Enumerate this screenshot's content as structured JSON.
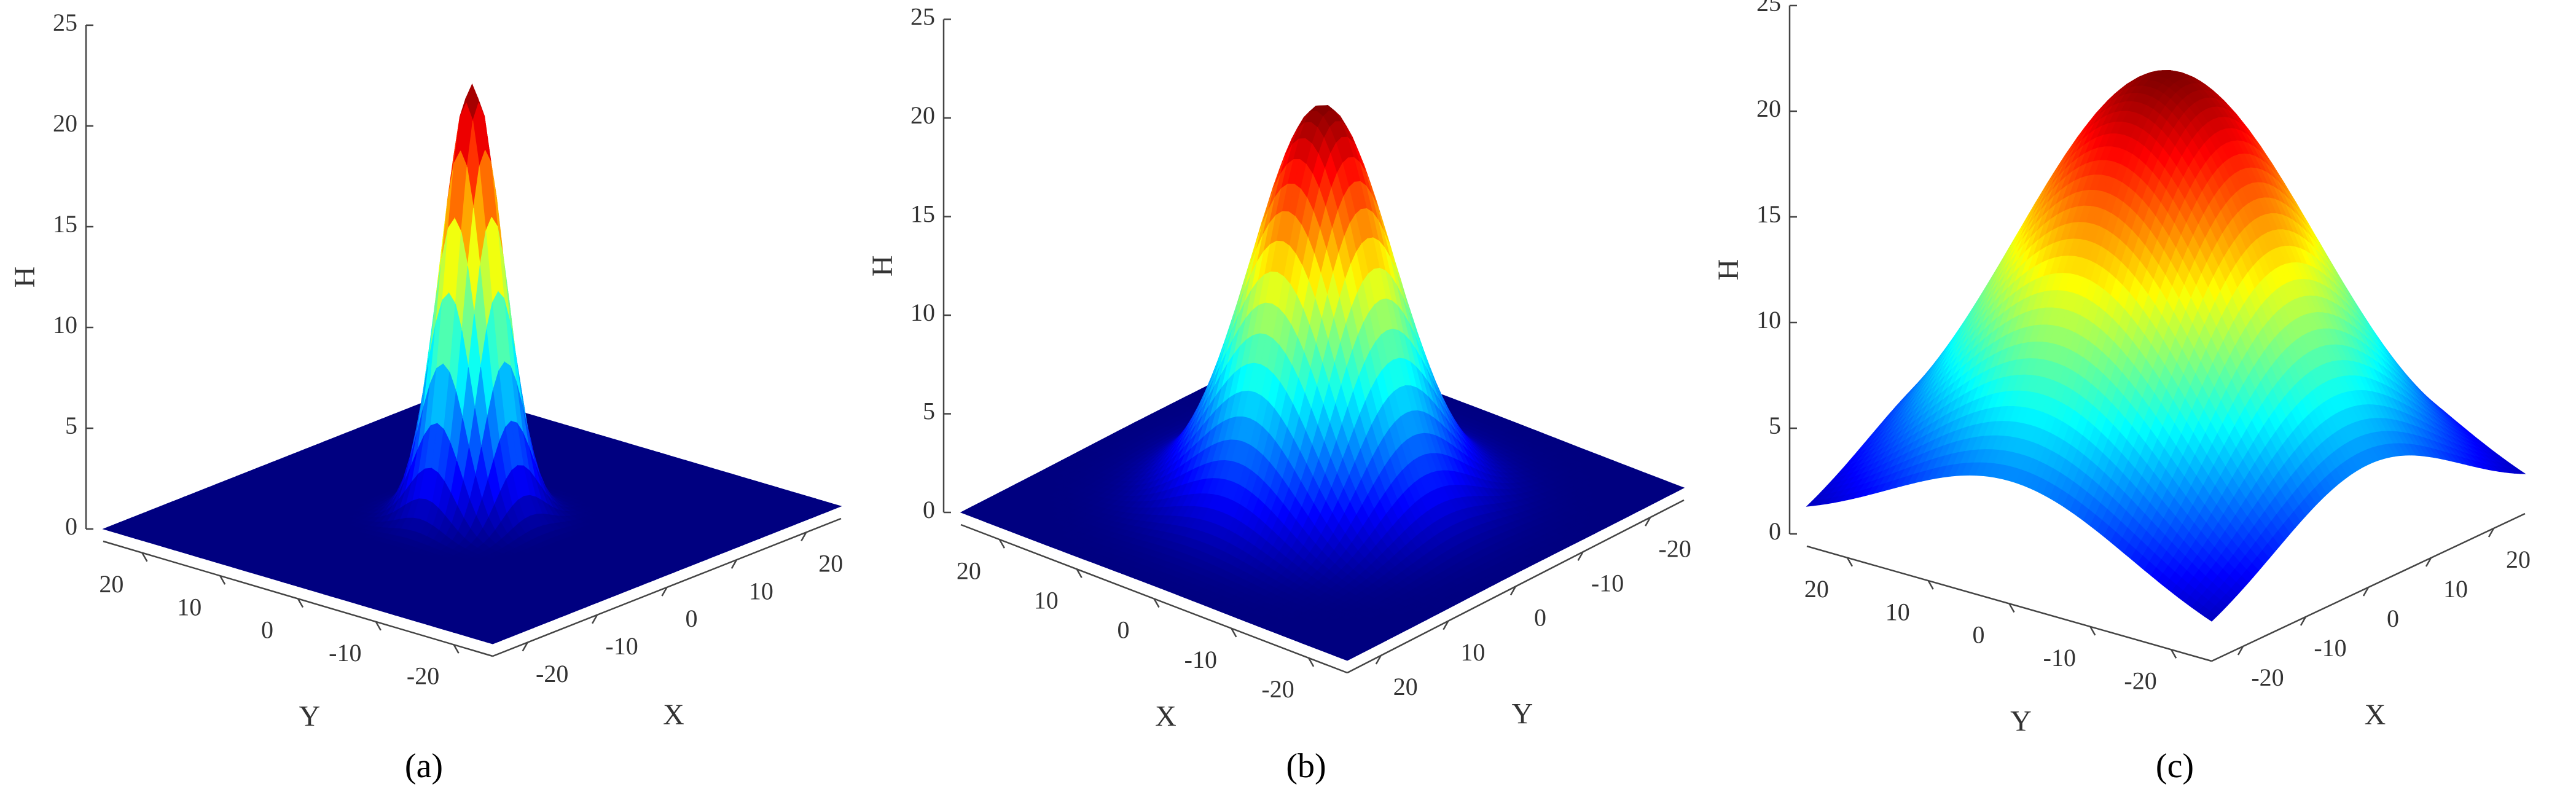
{
  "chart_data": [
    {
      "type": "surface",
      "caption": "(a)",
      "zlabel": "H",
      "zlim": [
        0,
        25
      ],
      "zticks": [
        0,
        5,
        10,
        15,
        20,
        25
      ],
      "left_axis": {
        "label": "Y",
        "lim": [
          25,
          -25
        ],
        "ticks": [
          20,
          10,
          0,
          -10,
          -20
        ]
      },
      "right_axis": {
        "label": "X",
        "lim": [
          -25,
          25
        ],
        "ticks": [
          -20,
          -10,
          0,
          10,
          20
        ]
      },
      "peak": 21.5,
      "sigma": 3,
      "colormap": "jet"
    },
    {
      "type": "surface",
      "caption": "(b)",
      "zlabel": "H",
      "zlim": [
        0,
        25
      ],
      "zticks": [
        0,
        5,
        10,
        15,
        20,
        25
      ],
      "left_axis": {
        "label": "X",
        "lim": [
          25,
          -25
        ],
        "ticks": [
          20,
          10,
          0,
          -10,
          -20
        ]
      },
      "right_axis": {
        "label": "Y",
        "lim": [
          25,
          -25
        ],
        "ticks": [
          20,
          10,
          0,
          -10,
          -20
        ]
      },
      "peak": 20,
      "sigma": 7,
      "colormap": "jet"
    },
    {
      "type": "surface",
      "caption": "(c)",
      "zlabel": "H",
      "zlim": [
        0,
        25
      ],
      "zticks": [
        0,
        5,
        10,
        15,
        20,
        25
      ],
      "left_axis": {
        "label": "Y",
        "lim": [
          25,
          -25
        ],
        "ticks": [
          20,
          10,
          0,
          -10,
          -20
        ]
      },
      "right_axis": {
        "label": "X",
        "lim": [
          -25,
          25
        ],
        "ticks": [
          -20,
          -10,
          0,
          10,
          20
        ]
      },
      "peak": 21,
      "sigma": 15,
      "colormap": "jet"
    }
  ]
}
